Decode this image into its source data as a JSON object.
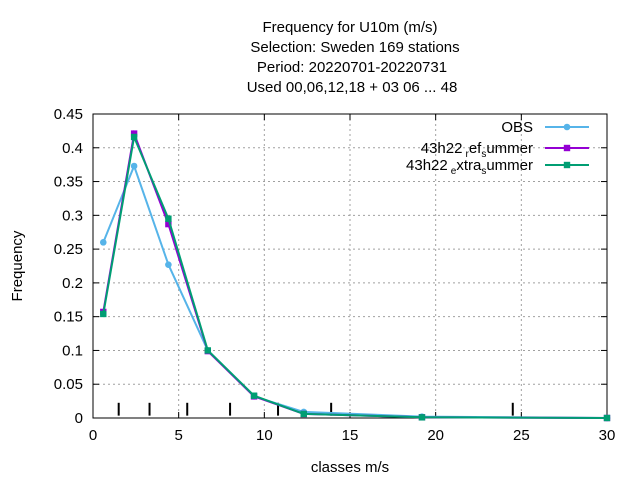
{
  "chart_data": {
    "type": "line",
    "title_lines": [
      "Frequency  for U10m (m/s)",
      "Selection: Sweden    169 stations",
      "Period: 20220701-20220731",
      "Used  00,06,12,18  + 03 06 ... 48"
    ],
    "xlabel": "classes m/s",
    "ylabel": "Frequency",
    "xlim": [
      0,
      30
    ],
    "ylim": [
      0,
      0.45
    ],
    "xticks": [
      0,
      5,
      10,
      15,
      20,
      25,
      30
    ],
    "yticks": [
      0,
      0.05,
      0.1,
      0.15,
      0.2,
      0.25,
      0.3,
      0.35,
      0.4,
      0.45
    ],
    "grid": true,
    "legend_position": "top-right",
    "class_boundaries": [
      1.5,
      3.3,
      5.5,
      8.0,
      10.8,
      13.9,
      24.5
    ],
    "series": [
      {
        "name": "OBS",
        "color": "#56b4e9",
        "x": [
          0.6,
          2.4,
          4.4,
          6.7,
          9.4,
          12.3,
          19.2,
          30
        ],
        "y": [
          0.26,
          0.373,
          0.227,
          0.1,
          0.032,
          0.009,
          0.002,
          0.0
        ]
      },
      {
        "name": "43h22",
        "sub1": "r",
        "mid": "ef",
        "sub2": "s",
        "tail": "ummer",
        "color": "#9400d3",
        "x": [
          0.6,
          2.4,
          4.4,
          6.7,
          9.4,
          12.3,
          19.2,
          30
        ],
        "y": [
          0.157,
          0.421,
          0.287,
          0.099,
          0.032,
          0.006,
          0.001,
          0.0
        ]
      },
      {
        "name": "43h22",
        "sub1": "e",
        "mid": "xtra",
        "sub2": "s",
        "tail": "ummer",
        "color": "#009e73",
        "x": [
          0.6,
          2.4,
          4.4,
          6.7,
          9.4,
          12.3,
          19.2,
          30
        ],
        "y": [
          0.154,
          0.416,
          0.295,
          0.1,
          0.033,
          0.006,
          0.001,
          0.0
        ]
      }
    ]
  }
}
